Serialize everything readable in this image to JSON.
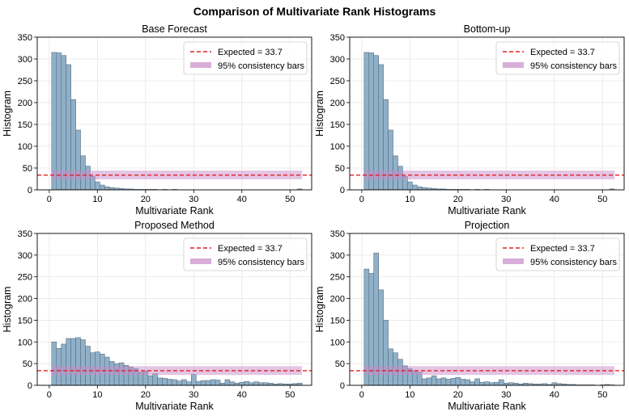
{
  "figure": {
    "title": "Comparison of Multivariate Rank Histograms",
    "colors": {
      "bar_fill": "#8fb0c8",
      "bar_edge": "#5b6f80",
      "expected_line": "#e02020",
      "band": "#c98ac9",
      "grid": "#e6e6e6"
    }
  },
  "chart_data": [
    {
      "type": "bar",
      "title": "Base Forecast",
      "xlabel": "Multivariate Rank",
      "ylabel": "Histogram",
      "xlim": [
        -2.5,
        54.5
      ],
      "ylim": [
        0,
        350
      ],
      "xticks": [
        0,
        10,
        20,
        30,
        40,
        50
      ],
      "yticks": [
        0,
        50,
        100,
        150,
        200,
        250,
        300,
        350
      ],
      "grid": true,
      "legend_position": "top-right",
      "expected": 33.7,
      "band": [
        24,
        44
      ],
      "legend": [
        "Expected = 33.7",
        "95% consistency bars"
      ],
      "x": [
        1,
        2,
        3,
        4,
        5,
        6,
        7,
        8,
        9,
        10,
        11,
        12,
        13,
        14,
        15,
        16,
        17,
        18,
        19,
        20,
        21,
        22,
        23,
        24,
        25,
        26,
        27,
        28,
        29,
        30,
        31,
        32,
        33,
        34,
        35,
        36,
        37,
        38,
        39,
        40,
        41,
        42,
        43,
        44,
        45,
        46,
        47,
        48,
        49,
        50,
        51,
        52
      ],
      "values": [
        315,
        314,
        308,
        287,
        207,
        137,
        78,
        54,
        31,
        18,
        11,
        7,
        5,
        4,
        3,
        2,
        2,
        1,
        1,
        1,
        1,
        1,
        0,
        1,
        0,
        1,
        0,
        0,
        0,
        0,
        0,
        0,
        0,
        0,
        0,
        0,
        0,
        0,
        0,
        0,
        0,
        0,
        0,
        0,
        0,
        0,
        0,
        0,
        0,
        0,
        0,
        2
      ]
    },
    {
      "type": "bar",
      "title": "Bottom-up",
      "xlabel": "Multivariate Rank",
      "ylabel": "Histogram",
      "xlim": [
        -2.5,
        54.5
      ],
      "ylim": [
        0,
        350
      ],
      "xticks": [
        0,
        10,
        20,
        30,
        40,
        50
      ],
      "yticks": [
        0,
        50,
        100,
        150,
        200,
        250,
        300,
        350
      ],
      "grid": true,
      "legend_position": "top-right",
      "expected": 33.7,
      "band": [
        24,
        44
      ],
      "legend": [
        "Expected = 33.7",
        "95% consistency bars"
      ],
      "x": [
        1,
        2,
        3,
        4,
        5,
        6,
        7,
        8,
        9,
        10,
        11,
        12,
        13,
        14,
        15,
        16,
        17,
        18,
        19,
        20,
        21,
        22,
        23,
        24,
        25,
        26,
        27,
        28,
        29,
        30,
        31,
        32,
        33,
        34,
        35,
        36,
        37,
        38,
        39,
        40,
        41,
        42,
        43,
        44,
        45,
        46,
        47,
        48,
        49,
        50,
        51,
        52
      ],
      "values": [
        315,
        314,
        308,
        287,
        207,
        137,
        78,
        54,
        31,
        18,
        11,
        7,
        5,
        4,
        3,
        2,
        2,
        1,
        1,
        1,
        1,
        1,
        0,
        1,
        0,
        1,
        0,
        0,
        0,
        0,
        0,
        0,
        0,
        0,
        0,
        0,
        0,
        0,
        0,
        0,
        0,
        0,
        0,
        0,
        0,
        0,
        0,
        0,
        0,
        0,
        0,
        2
      ]
    },
    {
      "type": "bar",
      "title": "Proposed Method",
      "xlabel": "Multivariate Rank",
      "ylabel": "Histogram",
      "xlim": [
        -2.5,
        54.5
      ],
      "ylim": [
        0,
        350
      ],
      "xticks": [
        0,
        10,
        20,
        30,
        40,
        50
      ],
      "yticks": [
        0,
        50,
        100,
        150,
        200,
        250,
        300,
        350
      ],
      "grid": true,
      "legend_position": "top-right",
      "expected": 33.7,
      "band": [
        24,
        44
      ],
      "legend": [
        "Expected = 33.7",
        "95% consistency bars"
      ],
      "x": [
        1,
        2,
        3,
        4,
        5,
        6,
        7,
        8,
        9,
        10,
        11,
        12,
        13,
        14,
        15,
        16,
        17,
        18,
        19,
        20,
        21,
        22,
        23,
        24,
        25,
        26,
        27,
        28,
        29,
        30,
        31,
        32,
        33,
        34,
        35,
        36,
        37,
        38,
        39,
        40,
        41,
        42,
        43,
        44,
        45,
        46,
        47,
        48,
        49,
        50,
        51,
        52
      ],
      "values": [
        100,
        85,
        95,
        108,
        108,
        110,
        105,
        90,
        75,
        77,
        72,
        65,
        55,
        50,
        52,
        46,
        42,
        38,
        30,
        33,
        22,
        27,
        17,
        16,
        14,
        13,
        10,
        13,
        8,
        25,
        9,
        11,
        11,
        13,
        12,
        5,
        13,
        8,
        5,
        7,
        9,
        6,
        8,
        6,
        6,
        5,
        3,
        4,
        3,
        3,
        4,
        5
      ]
    },
    {
      "type": "bar",
      "title": "Projection",
      "xlabel": "Multivariate Rank",
      "ylabel": "Histogram",
      "xlim": [
        -2.5,
        54.5
      ],
      "ylim": [
        0,
        350
      ],
      "xticks": [
        0,
        10,
        20,
        30,
        40,
        50
      ],
      "yticks": [
        0,
        50,
        100,
        150,
        200,
        250,
        300,
        350
      ],
      "grid": true,
      "legend_position": "top-right",
      "expected": 33.7,
      "band": [
        24,
        44
      ],
      "legend": [
        "Expected = 33.7",
        "95% consistency bars"
      ],
      "x": [
        1,
        2,
        3,
        4,
        5,
        6,
        7,
        8,
        9,
        10,
        11,
        12,
        13,
        14,
        15,
        16,
        17,
        18,
        19,
        20,
        21,
        22,
        23,
        24,
        25,
        26,
        27,
        28,
        29,
        30,
        31,
        32,
        33,
        34,
        35,
        36,
        37,
        38,
        39,
        40,
        41,
        42,
        43,
        44,
        45,
        46,
        47,
        48,
        49,
        50,
        51,
        52
      ],
      "values": [
        268,
        258,
        305,
        220,
        150,
        84,
        75,
        60,
        45,
        38,
        33,
        30,
        15,
        17,
        22,
        15,
        17,
        14,
        16,
        18,
        14,
        13,
        8,
        15,
        7,
        8,
        6,
        7,
        13,
        5,
        6,
        5,
        3,
        5,
        4,
        3,
        3,
        4,
        2,
        6,
        4,
        3,
        2,
        2,
        1,
        1,
        1,
        1,
        0,
        1,
        2,
        1
      ]
    }
  ]
}
